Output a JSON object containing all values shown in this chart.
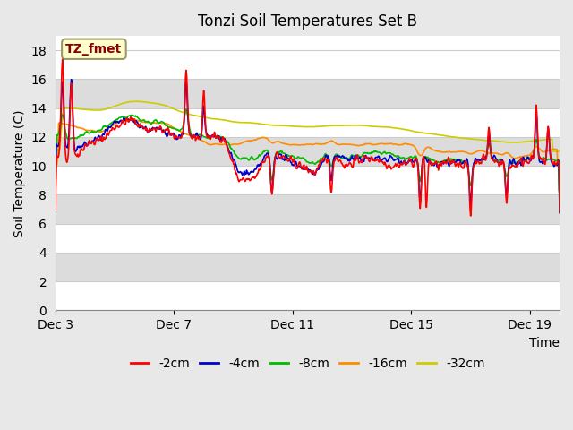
{
  "title": "Tonzi Soil Temperatures Set B",
  "xlabel": "Time",
  "ylabel": "Soil Temperature (C)",
  "xlim": [
    0,
    17
  ],
  "ylim": [
    0,
    19
  ],
  "yticks": [
    0,
    2,
    4,
    6,
    8,
    10,
    12,
    14,
    16,
    18
  ],
  "xtick_positions": [
    0,
    4,
    8,
    12,
    16
  ],
  "xtick_labels": [
    "Dec 3",
    "Dec 7",
    "Dec 11",
    "Dec 15",
    "Dec 19"
  ],
  "annotation_text": "TZ_fmet",
  "annotation_color": "#8B0000",
  "annotation_bg": "#FFFFCC",
  "annotation_border": "#999966",
  "series_colors": [
    "#FF0000",
    "#0000CD",
    "#00BB00",
    "#FF8C00",
    "#CCCC00"
  ],
  "series_labels": [
    "-2cm",
    "-4cm",
    "-8cm",
    "-16cm",
    "-32cm"
  ],
  "bg_color": "#E8E8E8",
  "plot_bg_white": "#FFFFFF",
  "plot_bg_gray": "#DCDCDC",
  "grid_color": "#CCCCCC",
  "linewidth": 1.2,
  "band_pairs": [
    [
      0,
      2
    ],
    [
      2,
      4
    ],
    [
      4,
      6
    ],
    [
      6,
      8
    ],
    [
      8,
      10
    ],
    [
      10,
      12
    ],
    [
      12,
      14
    ],
    [
      14,
      16
    ],
    [
      16,
      18
    ]
  ],
  "band_colors": [
    "#FFFFFF",
    "#DCDCDC",
    "#FFFFFF",
    "#DCDCDC",
    "#FFFFFF",
    "#DCDCDC",
    "#FFFFFF",
    "#DCDCDC",
    "#FFFFFF"
  ]
}
